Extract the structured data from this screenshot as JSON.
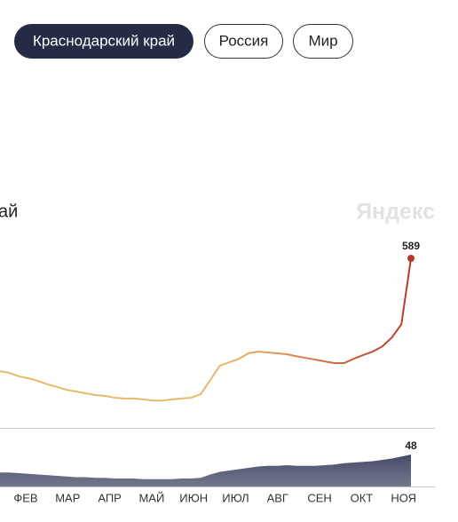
{
  "tabs": [
    "Краснодарский край",
    "Россия",
    "Мир"
  ],
  "heading_fragment": "ай",
  "watermark": "Яндекс",
  "x_axis": {
    "labels": [
      "ФЕВ",
      "МАР",
      "АПР",
      "МАЙ",
      "ИЮН",
      "ИЮЛ",
      "АВГ",
      "СЕН",
      "ОКТ",
      "НОЯ"
    ]
  },
  "chart_data": [
    {
      "type": "line",
      "color": "#e8b86a",
      "end_color": "#b8372a",
      "values": [
        197,
        191,
        179,
        172,
        163,
        151,
        142,
        132,
        126,
        120,
        114,
        111,
        105,
        102,
        102,
        99,
        95,
        95,
        99,
        102,
        105,
        117,
        166,
        216,
        228,
        240,
        259,
        265,
        262,
        259,
        256,
        249,
        243,
        237,
        231,
        225,
        225,
        240,
        253,
        265,
        283,
        314,
        360,
        589
      ]
    },
    {
      "type": "area",
      "color": "#464b68",
      "values": [
        21,
        21,
        20,
        19,
        18,
        17,
        16,
        15,
        14,
        14,
        13,
        13,
        12,
        12,
        12,
        11,
        11,
        11,
        11,
        12,
        12,
        13,
        18,
        22,
        24,
        26,
        28,
        30,
        31,
        31,
        32,
        31,
        31,
        31,
        32,
        33,
        35,
        36,
        37,
        38,
        40,
        42,
        45,
        48
      ]
    }
  ]
}
